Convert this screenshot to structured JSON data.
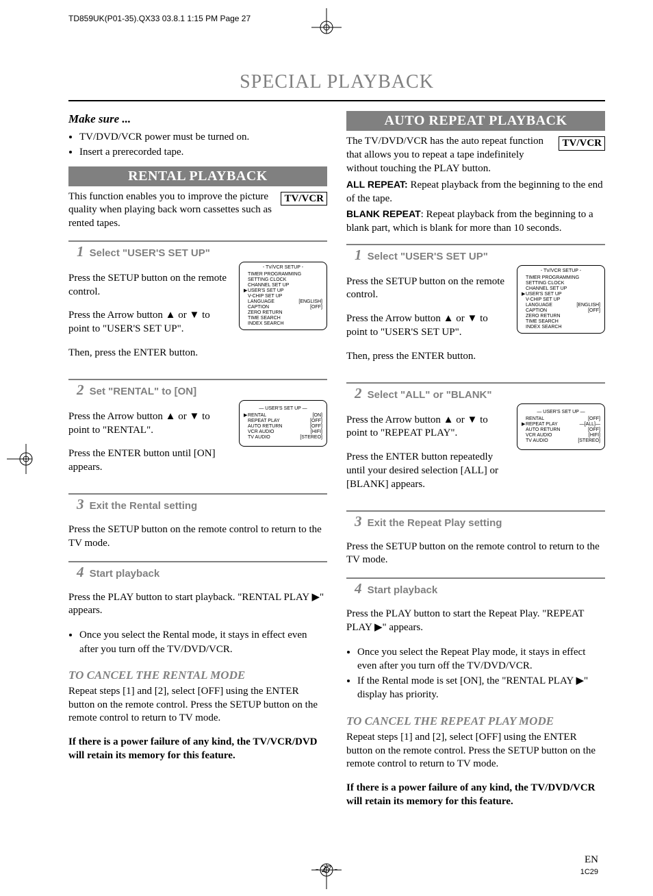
{
  "colors": {
    "gray": "#808080",
    "black": "#000000",
    "white": "#ffffff"
  },
  "print_header": "TD859UK(P01-35).QX33  03.8.1 1:15 PM  Page 27",
  "main_title": "SPECIAL PLAYBACK",
  "make_sure": {
    "heading": "Make sure ...",
    "items": [
      "TV/DVD/VCR power must be turned on.",
      "Insert a prerecorded tape."
    ]
  },
  "tvvcr_label": "TV/VCR",
  "rental": {
    "banner": "RENTAL PLAYBACK",
    "intro": "This function enables you to improve the picture quality when playing back worn cassettes such as rented tapes.",
    "step1": {
      "num": "1",
      "title": "Select \"USER'S SET UP\"",
      "body1": "Press the SETUP button on the remote control.",
      "body2": "Press the Arrow button ▲ or ▼ to point to \"USER'S SET UP\".",
      "body3": "Then, press the ENTER button."
    },
    "step2": {
      "num": "2",
      "title": "Set \"RENTAL\" to [ON]",
      "body1": "Press the Arrow button ▲ or ▼ to point to \"RENTAL\".",
      "body2": "Press the ENTER button until [ON] appears."
    },
    "step3": {
      "num": "3",
      "title": "Exit the Rental setting",
      "body": "Press the SETUP button on the remote control to return to the TV mode."
    },
    "step4": {
      "num": "4",
      "title": "Start playback",
      "body": "Press the PLAY button to start playback. \"RENTAL PLAY ▶\" appears.",
      "bullets": [
        "Once you select the Rental mode, it stays in effect even after you turn off the TV/DVD/VCR."
      ]
    },
    "cancel": {
      "title": "TO CANCEL THE RENTAL MODE",
      "body": "Repeat steps [1] and [2], select [OFF] using the ENTER button on the remote control. Press the SETUP button on the remote control to return to TV mode.",
      "note": "If there is a power failure of any kind, the TV/VCR/DVD will retain its memory for this feature."
    }
  },
  "auto": {
    "banner": "AUTO REPEAT PLAYBACK",
    "intro": "The TV/DVD/VCR has the auto repeat function that allows you to repeat a tape indefinitely without touching the PLAY button.",
    "defs": [
      {
        "term": "ALL REPEAT:",
        "body": "Repeat playback from the beginning to the end of the tape."
      },
      {
        "term": "BLANK REPEAT",
        "body": ": Repeat playback from the beginning to a blank part, which is blank for more than 10 seconds."
      }
    ],
    "step1": {
      "num": "1",
      "title": "Select \"USER'S SET UP\"",
      "body1": "Press the SETUP button on the remote control.",
      "body2": "Press the Arrow button ▲ or ▼ to point to \"USER'S SET UP\".",
      "body3": "Then, press the ENTER button."
    },
    "step2": {
      "num": "2",
      "title": "Select \"ALL\" or \"BLANK\"",
      "body1": "Press the Arrow button ▲ or ▼ to point to \"REPEAT PLAY\".",
      "body2": "Press the ENTER button repeatedly until your desired selection [ALL] or [BLANK] appears."
    },
    "step3": {
      "num": "3",
      "title": "Exit the Repeat Play setting",
      "body": "Press the SETUP button on the remote control to return to the TV mode."
    },
    "step4": {
      "num": "4",
      "title": "Start playback",
      "body": "Press the PLAY button to start the Repeat Play. \"REPEAT PLAY ▶\" appears.",
      "bullets": [
        "Once you select the Repeat Play mode, it stays in effect even after you turn off the TV/DVD/VCR.",
        "If the Rental mode is set [ON], the \"RENTAL PLAY ▶\" display has priority."
      ]
    },
    "cancel": {
      "title": "TO CANCEL THE REPEAT PLAY MODE",
      "body": "Repeat steps [1] and [2], select [OFF] using the ENTER button on the remote control. Press the SETUP button on the remote control to return to TV mode.",
      "note": "If there is a power failure of any kind, the TV/DVD/VCR will retain its memory for this feature."
    }
  },
  "menu_setup": {
    "title": "- TV/VCR SETUP -",
    "rows": [
      {
        "ptr": "",
        "label": "TIMER PROGRAMMING",
        "val": ""
      },
      {
        "ptr": "",
        "label": "SETTING CLOCK",
        "val": ""
      },
      {
        "ptr": "",
        "label": "CHANNEL SET UP",
        "val": ""
      },
      {
        "ptr": "▶",
        "label": "USER'S SET UP",
        "val": ""
      },
      {
        "ptr": "",
        "label": "V-CHIP SET UP",
        "val": ""
      },
      {
        "ptr": "",
        "label": "LANGUAGE",
        "val": "[ENGLISH]"
      },
      {
        "ptr": "",
        "label": "CAPTION",
        "val": "[OFF]"
      },
      {
        "ptr": "",
        "label": "ZERO RETURN",
        "val": ""
      },
      {
        "ptr": "",
        "label": "TIME SEARCH",
        "val": ""
      },
      {
        "ptr": "",
        "label": "INDEX SEARCH",
        "val": ""
      }
    ]
  },
  "menu_user_rental": {
    "title": "— USER'S SET UP —",
    "rows": [
      {
        "ptr": "▶",
        "label": "RENTAL",
        "val": "[ON]"
      },
      {
        "ptr": "",
        "label": "REPEAT PLAY",
        "val": "[OFF]"
      },
      {
        "ptr": "",
        "label": "AUTO RETURN",
        "val": "[OFF]"
      },
      {
        "ptr": "",
        "label": "VCR AUDIO",
        "val": "[HIFI]"
      },
      {
        "ptr": "",
        "label": "TV AUDIO",
        "val": "[STEREO]"
      }
    ]
  },
  "menu_user_repeat": {
    "title": "— USER'S SET UP —",
    "rows": [
      {
        "ptr": "",
        "label": "RENTAL",
        "val": "[OFF]"
      },
      {
        "ptr": "▶",
        "label": "REPEAT PLAY",
        "val": "—[ALL]—"
      },
      {
        "ptr": "",
        "label": "AUTO RETURN",
        "val": "[OFF]"
      },
      {
        "ptr": "",
        "label": "VCR AUDIO",
        "val": "[HIFI]"
      },
      {
        "ptr": "",
        "label": "TV AUDIO",
        "val": "[STEREO]"
      }
    ]
  },
  "footer": {
    "page_num": "- 27 -",
    "tag1": "EN",
    "tag2": "1C29"
  }
}
